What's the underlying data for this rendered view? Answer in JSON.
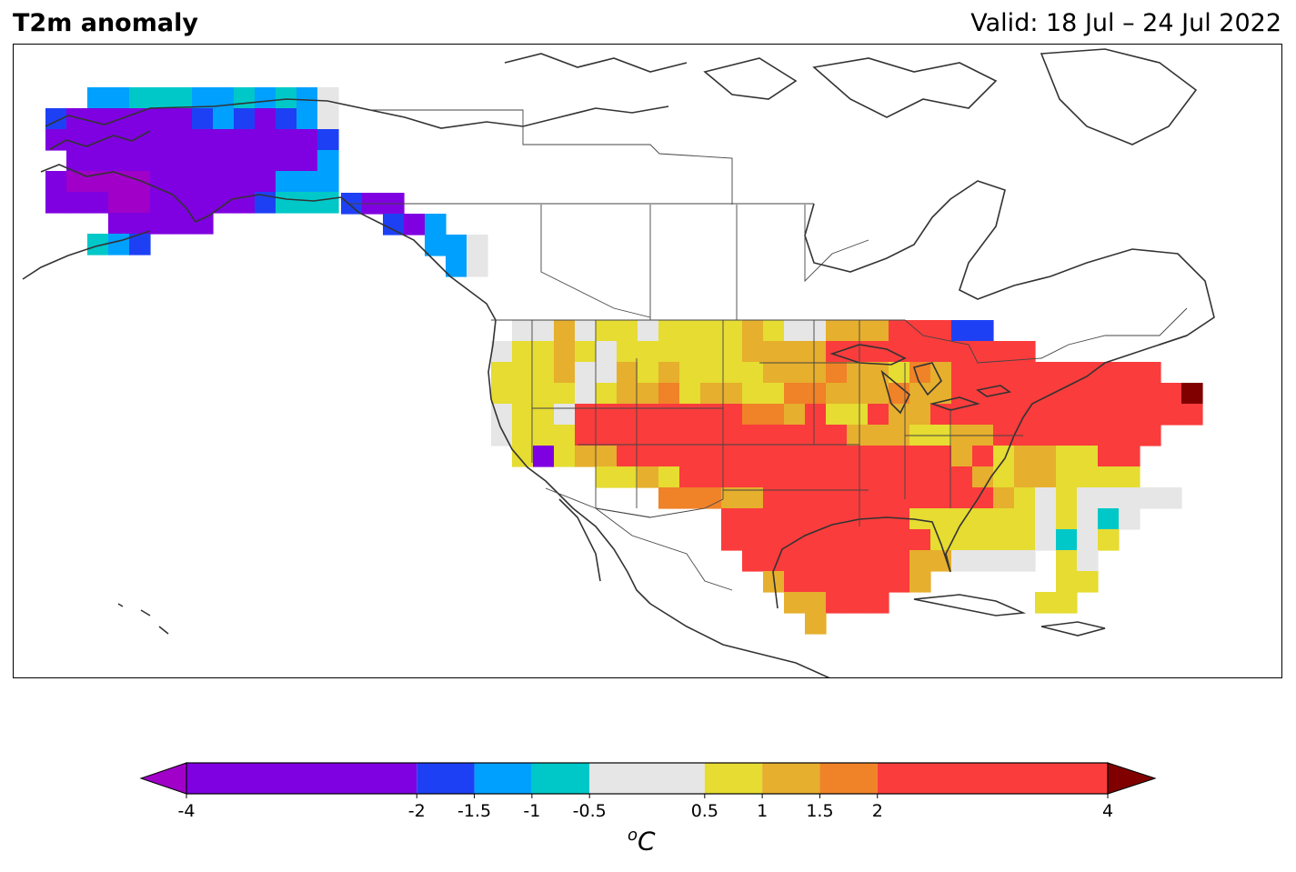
{
  "header": {
    "title": "T2m anomaly",
    "valid_text": "Valid: 18 Jul – 24 Jul 2022"
  },
  "colorbar": {
    "unit_sup": "o",
    "unit_main": "C",
    "bounds": [
      -4,
      -2,
      -1.5,
      -1,
      -0.5,
      0.5,
      1,
      1.5,
      2,
      4
    ],
    "tick_labels": [
      "-4",
      "-2",
      "-1.5",
      "-1",
      "-0.5",
      "0.5",
      "1",
      "1.5",
      "2",
      "4"
    ],
    "colors": [
      "#7F00E0",
      "#1E40F5",
      "#00A0FF",
      "#00C8C8",
      "#E6E6E6",
      "#E6DC32",
      "#E6AF2D",
      "#F08228",
      "#FA3C3C"
    ],
    "under_color": "#A000C8",
    "over_color": "#800000"
  },
  "map": {
    "projection": "Lambert conformal, North America",
    "color_legend_by_value": {
      "purple": "< -2",
      "blue": "-2 to -1.5",
      "sky": "-1.5 to -1",
      "cyan": "-1 to -0.5",
      "gray": "-0.5 to 0.5",
      "yellow": "0.5 to 1",
      "gold": "1 to 1.5",
      "orange": "1.5 to 2",
      "red": "2 to 4",
      "darkred": "> 4"
    },
    "regions": {
      "alaska": "strong negative anomaly (< -2)",
      "southeast_alaska": "negative anomaly (-2 to -0.5)",
      "western_us": "slight positive to neutral",
      "southern_plains_southwest": "2 to 4",
      "great_lakes_northeast": "2 to 4",
      "new_england_coast": "> 4",
      "southeast_us": "neutral to slight positive"
    }
  }
}
